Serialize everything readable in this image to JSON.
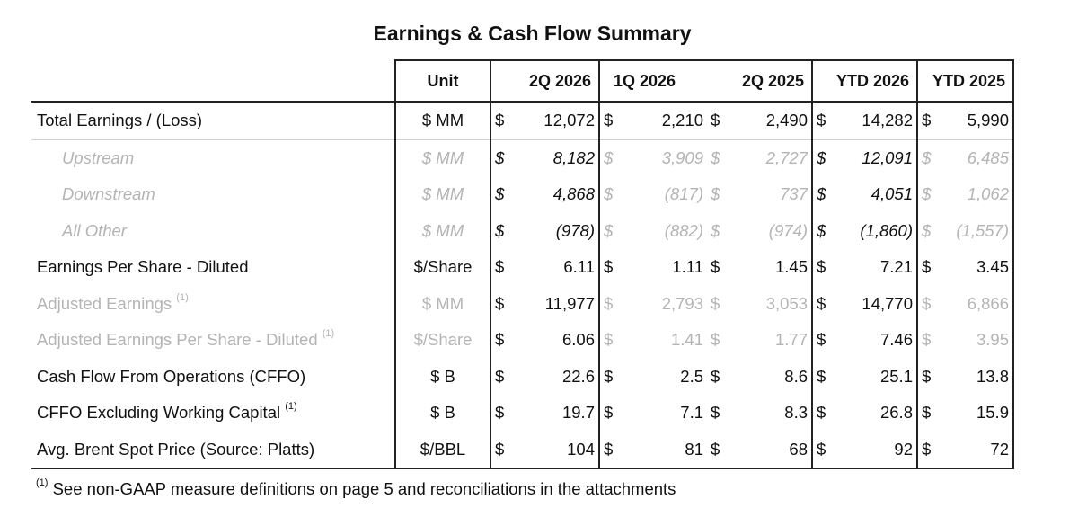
{
  "title": "Earnings & Cash Flow Summary",
  "headers": {
    "unit": "Unit",
    "periods": [
      "2Q 2026",
      "1Q 2026",
      "2Q 2025",
      "YTD 2026",
      "YTD 2025"
    ]
  },
  "rows": [
    {
      "label": "Total Earnings / (Loss)",
      "unit": "$ MM",
      "note": "",
      "cur": [
        "$",
        "$",
        "$",
        "$",
        "$"
      ],
      "values": [
        "12,072",
        "2,210",
        "2,490",
        "14,282",
        "5,990"
      ]
    },
    {
      "label": "Upstream",
      "unit": "$ MM",
      "note": "",
      "cur": [
        "$",
        "$",
        "$",
        "$",
        "$"
      ],
      "values": [
        "8,182",
        "3,909",
        "2,727",
        "12,091",
        "6,485"
      ]
    },
    {
      "label": "Downstream",
      "unit": "$ MM",
      "note": "",
      "cur": [
        "$",
        "$",
        "$",
        "$",
        "$"
      ],
      "values": [
        "4,868",
        "(817)",
        "737",
        "4,051",
        "1,062"
      ]
    },
    {
      "label": "All Other",
      "unit": "$ MM",
      "note": "",
      "cur": [
        "$",
        "$",
        "$",
        "$",
        "$"
      ],
      "values": [
        "(978)",
        "(882)",
        "(974)",
        "(1,860)",
        "(1,557)"
      ]
    },
    {
      "label": "Earnings Per Share - Diluted",
      "unit": "$/Share",
      "note": "",
      "cur": [
        "$",
        "$",
        "$",
        "$",
        "$"
      ],
      "values": [
        "6.11",
        "1.11",
        "1.45",
        "7.21",
        "3.45"
      ]
    },
    {
      "label": "Adjusted Earnings",
      "unit": "$ MM",
      "note": "(1)",
      "cur": [
        "$",
        "$",
        "$",
        "$",
        "$"
      ],
      "values": [
        "11,977",
        "2,793",
        "3,053",
        "14,770",
        "6,866"
      ]
    },
    {
      "label": "Adjusted Earnings Per Share - Diluted",
      "unit": "$/Share",
      "note": "(1)",
      "cur": [
        "$",
        "$",
        "$",
        "$",
        "$"
      ],
      "values": [
        "6.06",
        "1.41",
        "1.77",
        "7.46",
        "3.95"
      ]
    },
    {
      "label": "Cash Flow From Operations (CFFO)",
      "unit": "$ B",
      "note": "",
      "cur": [
        "$",
        "$",
        "$",
        "$",
        "$"
      ],
      "values": [
        "22.6",
        "2.5",
        "8.6",
        "25.1",
        "13.8"
      ]
    },
    {
      "label": "CFFO Excluding Working Capital",
      "unit": "$ B",
      "note": "(1)",
      "cur": [
        "$",
        "$",
        "$",
        "$",
        "$"
      ],
      "values": [
        "19.7",
        "7.1",
        "8.3",
        "26.8",
        "15.9"
      ]
    },
    {
      "label": "Avg. Brent Spot Price (Source: Platts)",
      "unit": "$/BBL",
      "note": "",
      "cur": [
        "$",
        "$",
        "$",
        "$",
        "$"
      ],
      "values": [
        "104",
        "81",
        "68",
        "92",
        "72"
      ]
    }
  ],
  "footnote": {
    "mark": "(1)",
    "text": "See non-GAAP measure definitions on page 5 and reconciliations in the attachments"
  }
}
